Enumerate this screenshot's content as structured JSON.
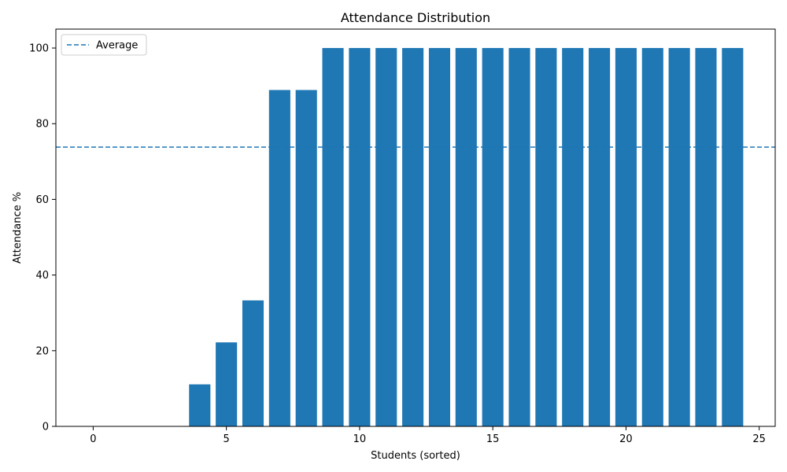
{
  "chart_data": {
    "type": "bar",
    "title": "Attendance Distribution",
    "xlabel": "Students (sorted)",
    "ylabel": "Attendance %",
    "x": [
      0,
      1,
      2,
      3,
      4,
      5,
      6,
      7,
      8,
      9,
      10,
      11,
      12,
      13,
      14,
      15,
      16,
      17,
      18,
      19,
      20,
      21,
      22,
      23,
      24
    ],
    "values": [
      0,
      0,
      0,
      0,
      11.1,
      22.2,
      33.3,
      88.9,
      88.9,
      100,
      100,
      100,
      100,
      100,
      100,
      100,
      100,
      100,
      100,
      100,
      100,
      100,
      100,
      100,
      100
    ],
    "xlim": [
      -1.4,
      25.6
    ],
    "ylim": [
      0,
      105
    ],
    "xticks": [
      0,
      5,
      10,
      15,
      20,
      25
    ],
    "yticks": [
      0,
      20,
      40,
      60,
      80,
      100
    ],
    "bar_color": "#1f77b4",
    "average": {
      "name": "Average",
      "value": 73.8,
      "style": "dashed",
      "color": "#1f77b4"
    },
    "legend": {
      "position": "top-left",
      "entries": [
        "Average"
      ]
    },
    "grid": false
  }
}
